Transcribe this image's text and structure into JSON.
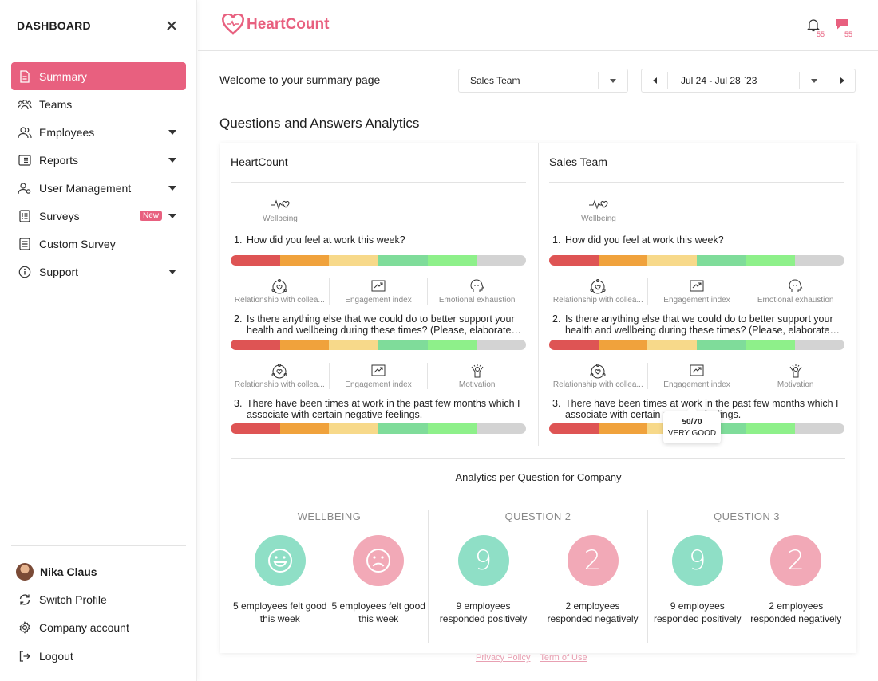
{
  "sidebar": {
    "title": "DASHBOARD",
    "items": [
      {
        "label": "Summary",
        "icon": "document-icon",
        "active": true
      },
      {
        "label": "Teams",
        "icon": "team-icon"
      },
      {
        "label": "Employees",
        "icon": "users-icon",
        "expandable": true
      },
      {
        "label": "Reports",
        "icon": "list-icon",
        "expandable": true
      },
      {
        "label": "User Management",
        "icon": "user-gear-icon",
        "expandable": true
      },
      {
        "label": "Surveys",
        "icon": "checklist-icon",
        "expandable": true,
        "badge": "New"
      },
      {
        "label": "Custom Survey",
        "icon": "checklist-icon"
      },
      {
        "label": "Support",
        "icon": "info-icon",
        "expandable": true
      }
    ],
    "bottom": {
      "user_name": "Nika Claus",
      "switch_profile": "Switch Profile",
      "company_account": "Company account",
      "logout": "Logout"
    }
  },
  "header": {
    "logo_text": "HeartCount",
    "notifications_count": "55",
    "messages_count": "55",
    "accent": "#e8607f"
  },
  "filters": {
    "welcome": "Welcome to your summary page",
    "team": "Sales Team",
    "date_range": "Jul 24 - Jul 28 `23"
  },
  "qa": {
    "title": "Questions and Answers Analytics",
    "columns": [
      {
        "title": "HeartCount",
        "category": "Wellbeing",
        "questions": [
          {
            "num": "1.",
            "lines": [
              "How did you feel at work this week?"
            ]
          },
          {
            "num": "2.",
            "lines": [
              "Is there anything else that we could do to better support your",
              "health and wellbeing during these times? (Please, elaborate sh..."
            ]
          },
          {
            "num": "3.",
            "lines": [
              "There have been times at work in the past few months which I",
              "associate with certain negative feelings."
            ]
          }
        ],
        "sub1": [
          "Relationship with collea...",
          "Engagement index",
          "Emotional exhaustion"
        ],
        "sub2": [
          "Relationship with collea...",
          "Engagement index",
          "Motivation"
        ]
      },
      {
        "title": "Sales Team",
        "category": "Wellbeing",
        "questions": [
          {
            "num": "1.",
            "lines": [
              "How did you feel at work this week?"
            ]
          },
          {
            "num": "2.",
            "lines": [
              "Is there anything else that we could do to better support your",
              "health and wellbeing during these times? (Please, elaborate sh..."
            ]
          },
          {
            "num": "3.",
            "lines": [
              "There have been times at work in the past few months which I",
              "associate with certain negative feelings."
            ]
          }
        ],
        "sub1": [
          "Relationship with collea...",
          "Engagement index",
          "Emotional exhaustion"
        ],
        "sub2": [
          "Relationship with collea...",
          "Engagement index",
          "Motivation"
        ]
      }
    ],
    "bar_colors": [
      "#de5454",
      "#f0a23c",
      "#f7d98a",
      "#7fdc9a",
      "#8ef08a",
      "#d3d3d3"
    ],
    "tooltip": {
      "score": "50/70",
      "label": "VERY GOOD"
    }
  },
  "analytics": {
    "title": "Analytics per Question for Company",
    "groups": [
      {
        "head": "WELLBEING",
        "pos": {
          "value": "smiley-face-icon",
          "label": "5 employees felt good this week"
        },
        "neg": {
          "value": "sad-face-icon",
          "label": "5 employees felt good this week"
        }
      },
      {
        "head": "QUESTION 2",
        "pos": {
          "value": "9",
          "label": "9 employees responded positively"
        },
        "neg": {
          "value": "2",
          "label": "2 employees responded negatively"
        }
      },
      {
        "head": "QUESTION 3",
        "pos": {
          "value": "9",
          "label": "9 employees responded positively"
        },
        "neg": {
          "value": "2",
          "label": "2 employees responded negatively"
        }
      }
    ]
  },
  "footer": {
    "privacy": "Privacy Policy",
    "terms": "Term of Use"
  }
}
